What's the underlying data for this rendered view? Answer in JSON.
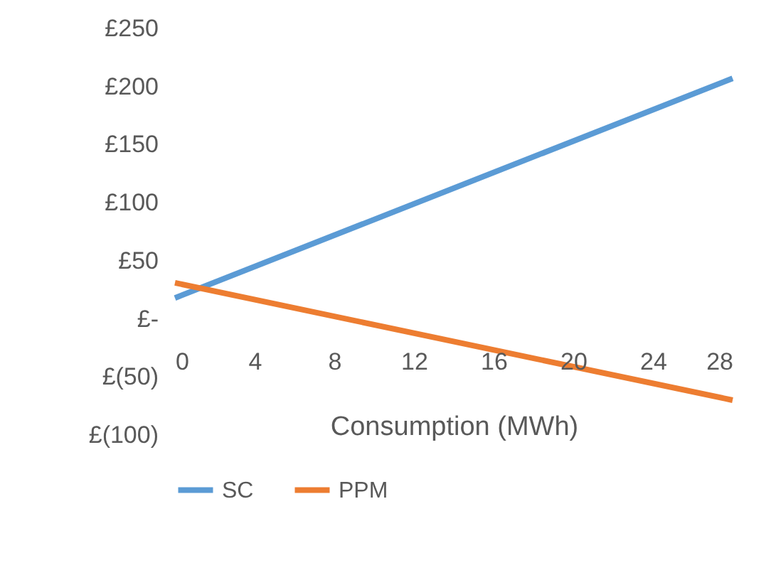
{
  "chart_data": {
    "type": "line",
    "xlabel": "Consumption (MWh)",
    "x": [
      0,
      28
    ],
    "series": [
      {
        "name": "SC",
        "color": "#5b9bd5",
        "values": [
          18,
          207
        ]
      },
      {
        "name": "PPM",
        "color": "#ed7d31",
        "values": [
          31,
          -70
        ]
      }
    ],
    "xlim": [
      0,
      28
    ],
    "xticks": [
      0,
      4,
      8,
      12,
      16,
      20,
      24,
      28
    ],
    "ylim": [
      -100,
      250
    ],
    "yticks": [
      {
        "value": -100,
        "label": "£(100)"
      },
      {
        "value": -50,
        "label": "£(50)"
      },
      {
        "value": 0,
        "label": "£-"
      },
      {
        "value": 50,
        "label": "£50"
      },
      {
        "value": 100,
        "label": "£100"
      },
      {
        "value": 150,
        "label": "£150"
      },
      {
        "value": 200,
        "label": "£200"
      },
      {
        "value": 250,
        "label": "£250"
      }
    ],
    "grid": false,
    "legend": "bottom",
    "marker": "none",
    "line_style": "solid"
  }
}
